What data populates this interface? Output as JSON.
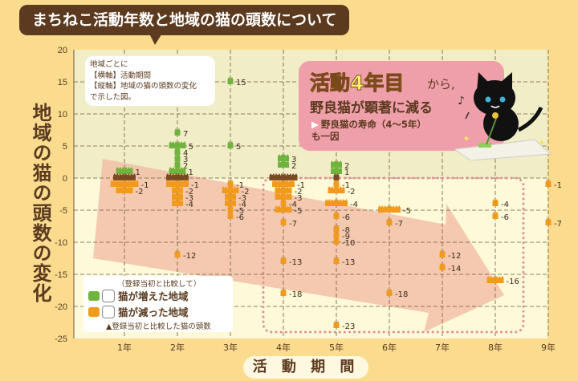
{
  "title": "まちねこ活動年数と地域の猫の頭数について",
  "note": {
    "lines": [
      "地域ごとに",
      "【横軸】活動期間",
      "【縦軸】地域の猫の頭数の変化",
      "で示した図。"
    ]
  },
  "callout": {
    "headline": "活動4年目",
    "headline_suffix": "から,",
    "subline": "野良猫が顕著に減る",
    "bullet_line1": "野良猫の寿命（4〜5年）",
    "bullet_line2": "も一因",
    "bullet_icon": "triangle-right-icon"
  },
  "legend": {
    "caption": "（登録当初と比較して）",
    "increase_label": "猫が増えた地域",
    "decrease_label": "猫が減った地域",
    "footnote": "▲登録当初と比較した猫の頭数",
    "increase_icon": "green-cat-icon",
    "decrease_icon": "orange-cat-icon"
  },
  "colors": {
    "increase": "#6fb43c",
    "decrease": "#f29a1e",
    "unchanged": "#7a4a22",
    "page_bg": "#fbdc8f",
    "plot_upper_bg": "#f1edc6",
    "plot_lower_bg": "#fdf9d9",
    "arrow": "#f2b8a0",
    "highlight_border": "#e0909a",
    "title_bg": "#5b3a1f"
  },
  "chart_data": {
    "type": "scatter",
    "ylabel": "地域の猫の頭数の変化",
    "xlabel": "活 動 期 間",
    "ylim": [
      -25,
      20
    ],
    "yticks": [
      20,
      15,
      10,
      5,
      0,
      -5,
      -10,
      -15,
      -20,
      -25
    ],
    "xticks": [
      "1年",
      "2年",
      "3年",
      "4年",
      "5年",
      "6年",
      "7年",
      "8年",
      "9年"
    ],
    "grid": true,
    "legend_position": "bottom-left",
    "points": [
      {
        "year": 1,
        "value": 1,
        "count": 3,
        "label": "1"
      },
      {
        "year": 1,
        "value": 0,
        "count": 4,
        "label": ""
      },
      {
        "year": 1,
        "value": -1,
        "count": 5,
        "label": "-1"
      },
      {
        "year": 1,
        "value": -2,
        "count": 3,
        "label": "-2"
      },
      {
        "year": 2,
        "value": 7,
        "count": 1,
        "label": "7"
      },
      {
        "year": 2,
        "value": 5,
        "count": 3,
        "label": "5"
      },
      {
        "year": 2,
        "value": 4,
        "count": 1,
        "label": "4"
      },
      {
        "year": 2,
        "value": 3,
        "count": 1,
        "label": "3"
      },
      {
        "year": 2,
        "value": 2,
        "count": 1,
        "label": "2"
      },
      {
        "year": 2,
        "value": 1,
        "count": 3,
        "label": "1"
      },
      {
        "year": 2,
        "value": 0,
        "count": 4,
        "label": ""
      },
      {
        "year": 2,
        "value": -1,
        "count": 4,
        "label": "-1"
      },
      {
        "year": 2,
        "value": -2,
        "count": 2,
        "label": "-2"
      },
      {
        "year": 2,
        "value": -3,
        "count": 2,
        "label": "-3"
      },
      {
        "year": 2,
        "value": -4,
        "count": 2,
        "label": "-4"
      },
      {
        "year": 2,
        "value": -12,
        "count": 1,
        "label": "-12"
      },
      {
        "year": 3,
        "value": 15,
        "count": 1,
        "label": "15"
      },
      {
        "year": 3,
        "value": 5,
        "count": 1,
        "label": "5"
      },
      {
        "year": 3,
        "value": -1,
        "count": 1,
        "label": "-1"
      },
      {
        "year": 3,
        "value": -2,
        "count": 3,
        "label": "-2"
      },
      {
        "year": 3,
        "value": -3,
        "count": 2,
        "label": "-3"
      },
      {
        "year": 3,
        "value": -4,
        "count": 2,
        "label": "-4"
      },
      {
        "year": 3,
        "value": -5,
        "count": 1,
        "label": "-5"
      },
      {
        "year": 3,
        "value": -6,
        "count": 1,
        "label": "-6"
      },
      {
        "year": 4,
        "value": 3,
        "count": 2,
        "label": "3"
      },
      {
        "year": 4,
        "value": 2,
        "count": 2,
        "label": "2"
      },
      {
        "year": 4,
        "value": 0,
        "count": 5,
        "label": ""
      },
      {
        "year": 4,
        "value": -1,
        "count": 4,
        "label": "-1"
      },
      {
        "year": 4,
        "value": -2,
        "count": 3,
        "label": "-2"
      },
      {
        "year": 4,
        "value": -3,
        "count": 3,
        "label": "-3"
      },
      {
        "year": 4,
        "value": -4,
        "count": 1,
        "label": "-4"
      },
      {
        "year": 4,
        "value": -5,
        "count": 3,
        "label": "-5"
      },
      {
        "year": 4,
        "value": -7,
        "count": 1,
        "label": "-7"
      },
      {
        "year": 4,
        "value": -13,
        "count": 1,
        "label": "-13"
      },
      {
        "year": 4,
        "value": -18,
        "count": 1,
        "label": "-18"
      },
      {
        "year": 5,
        "value": 2,
        "count": 2,
        "label": "2"
      },
      {
        "year": 5,
        "value": 1,
        "count": 2,
        "label": "1"
      },
      {
        "year": 5,
        "value": 0,
        "count": 1,
        "label": ""
      },
      {
        "year": 5,
        "value": -1,
        "count": 1,
        "label": "-1"
      },
      {
        "year": 5,
        "value": -2,
        "count": 3,
        "label": "-2"
      },
      {
        "year": 5,
        "value": -4,
        "count": 4,
        "label": "-4"
      },
      {
        "year": 5,
        "value": -6,
        "count": 1,
        "label": "-6"
      },
      {
        "year": 5,
        "value": -8,
        "count": 1,
        "label": "-8"
      },
      {
        "year": 5,
        "value": -9,
        "count": 1,
        "label": "-9"
      },
      {
        "year": 5,
        "value": -10,
        "count": 1,
        "label": "-10"
      },
      {
        "year": 5,
        "value": -13,
        "count": 1,
        "label": "-13"
      },
      {
        "year": 5,
        "value": -23,
        "count": 1,
        "label": "-23"
      },
      {
        "year": 6,
        "value": -5,
        "count": 4,
        "label": "-5"
      },
      {
        "year": 6,
        "value": -7,
        "count": 1,
        "label": "-7"
      },
      {
        "year": 6,
        "value": -18,
        "count": 1,
        "label": "-18"
      },
      {
        "year": 7,
        "value": -12,
        "count": 1,
        "label": "-12"
      },
      {
        "year": 7,
        "value": -14,
        "count": 1,
        "label": "-14"
      },
      {
        "year": 8,
        "value": -4,
        "count": 1,
        "label": "-4"
      },
      {
        "year": 8,
        "value": -6,
        "count": 1,
        "label": "-6"
      },
      {
        "year": 8,
        "value": -16,
        "count": 3,
        "label": "-16"
      },
      {
        "year": 9,
        "value": -1,
        "count": 1,
        "label": "-1"
      },
      {
        "year": 9,
        "value": -7,
        "count": 1,
        "label": "-7"
      }
    ]
  }
}
